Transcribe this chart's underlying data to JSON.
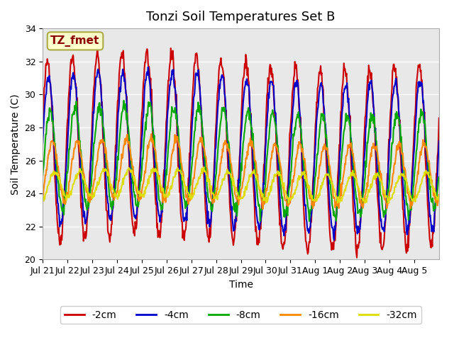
{
  "title": "Tonzi Soil Temperatures Set B",
  "xlabel": "Time",
  "ylabel": "Soil Temperature (C)",
  "ylim": [
    20,
    34
  ],
  "background_color": "#e8e8e8",
  "plot_bg_color": "#e8e8e8",
  "grid_color": "white",
  "series": [
    {
      "label": "-2cm",
      "color": "#cc0000",
      "lw": 1.5
    },
    {
      "label": "-4cm",
      "color": "#0000cc",
      "lw": 1.5
    },
    {
      "label": "-8cm",
      "color": "#00aa00",
      "lw": 1.5
    },
    {
      "label": "-16cm",
      "color": "#ff8800",
      "lw": 1.5
    },
    {
      "label": "-32cm",
      "color": "#dddd00",
      "lw": 1.5
    }
  ],
  "annotation_text": "TZ_fmet",
  "annotation_color": "#8b0000",
  "annotation_bg": "#ffffcc",
  "annotation_border": "#aaaa44",
  "xtick_labels": [
    "Jul 21",
    "Jul 22",
    "Jul 23",
    "Jul 24",
    "Jul 25",
    "Jul 26",
    "Jul 27",
    "Jul 28",
    "Jul 29",
    "Jul 30",
    "Jul 31",
    "Aug 1",
    "Aug 2",
    "Aug 3",
    "Aug 4",
    "Aug 5"
  ],
  "n_days": 16,
  "pts_per_day": 48,
  "title_fontsize": 13,
  "label_fontsize": 10,
  "tick_fontsize": 9,
  "legend_fontsize": 10
}
